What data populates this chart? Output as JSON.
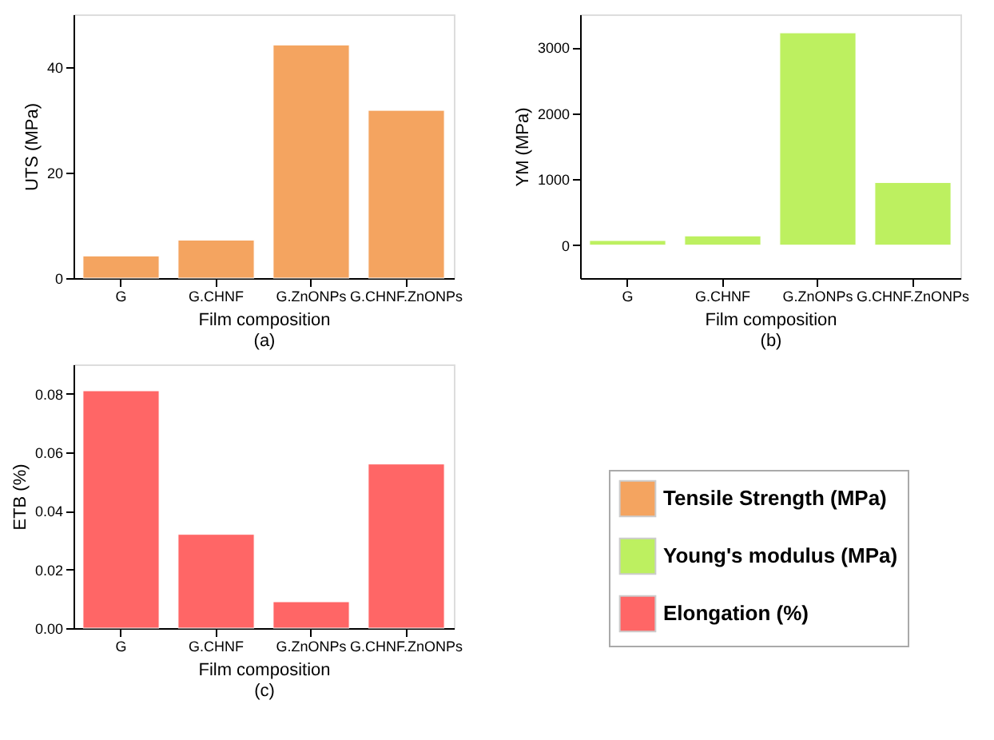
{
  "chart_data": [
    {
      "type": "bar",
      "categories": [
        "G",
        "G.CHNF",
        "G.ZnONPs",
        "G.CHNF.ZnONPs"
      ],
      "xlabel": "Film composition",
      "ylabel": "UTS (MPa)",
      "annotations": [
        "(a)"
      ],
      "ylim": [
        0,
        50
      ],
      "yticks": [
        0,
        20,
        40
      ],
      "grid": false,
      "legend": "bottom right",
      "series": [
        {
          "name": "Tensile Strength (MPa)",
          "color": "#f4a460",
          "values": [
            4.2,
            7.2,
            44.2,
            31.8
          ]
        }
      ]
    },
    {
      "type": "bar",
      "categories": [
        "G",
        "G.CHNF",
        "G.ZnONPs",
        "G.CHNF.ZnONPs"
      ],
      "xlabel": "Film composition",
      "ylabel": "YM (MPa)",
      "annotations": [
        "(b)"
      ],
      "ylim": [
        -500,
        3500
      ],
      "yticks": [
        0,
        1000,
        2000,
        3000
      ],
      "grid": false,
      "legend": "bottom left",
      "series": [
        {
          "name": "Young's modulus (MPa)",
          "color": "#bdf060",
          "values": [
            70,
            140,
            3220,
            950
          ]
        }
      ]
    },
    {
      "type": "bar",
      "categories": [
        "G",
        "G.CHNF",
        "G.ZnONPs",
        "G.CHNF.ZnONPs"
      ],
      "xlabel": "Film composition",
      "ylabel": "ETB (%)",
      "annotations": [
        "(c)"
      ],
      "ylim": [
        0,
        0.09
      ],
      "yticks": [
        {
          "value": 0,
          "label": "0.00"
        },
        {
          "value": 0.02,
          "label": "0.02"
        },
        {
          "value": 0.04,
          "label": "0.04"
        },
        {
          "value": 0.06,
          "label": "0.06"
        },
        {
          "value": 0.08,
          "label": "0.08"
        }
      ],
      "grid": false,
      "legend": "right",
      "series": [
        {
          "name": "Elongation (%)",
          "color": "#ff6666",
          "values": [
            0.081,
            0.032,
            0.009,
            0.056
          ]
        }
      ]
    }
  ]
}
